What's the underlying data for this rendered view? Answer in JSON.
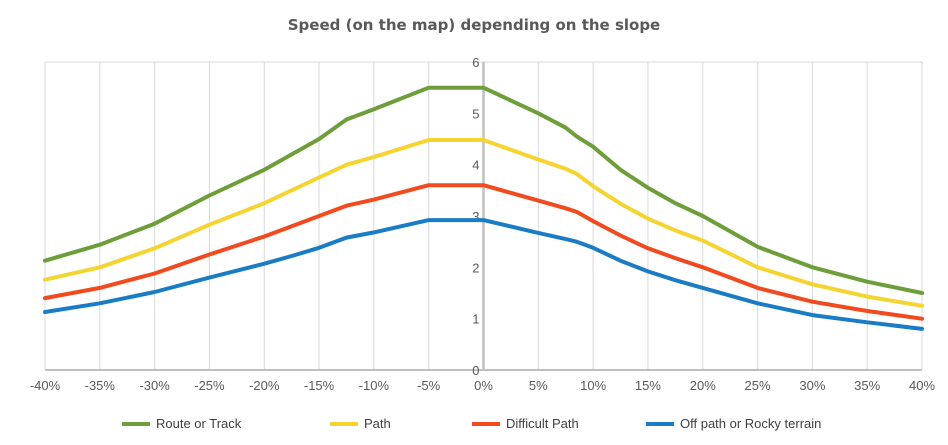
{
  "chart_data": {
    "type": "line",
    "title": "Speed (on the map) depending on the slope",
    "xlabel": "",
    "ylabel": "",
    "x_tick_labels": [
      "-40%",
      "-35%",
      "-30%",
      "-25%",
      "-20%",
      "-15%",
      "-10%",
      "-5%",
      "0%",
      "5%",
      "10%",
      "15%",
      "20%",
      "25%",
      "30%",
      "35%",
      "40%"
    ],
    "y_tick_labels": [
      "0",
      "1",
      "2",
      "3",
      "4",
      "5",
      "6"
    ],
    "xlim": [
      -40,
      40
    ],
    "ylim": [
      0,
      6
    ],
    "grid": "vertical",
    "legend": "bottom",
    "x": [
      -40,
      -35,
      -30,
      -25,
      -20,
      -17.5,
      -15,
      -12.5,
      -10,
      -5,
      0,
      5,
      7.5,
      8.5,
      10,
      12.5,
      15,
      17.5,
      20,
      25,
      30,
      35,
      40
    ],
    "series": [
      {
        "name": "Route or Track",
        "color": "#6e9e3a",
        "values": [
          2.13,
          2.44,
          2.85,
          3.4,
          3.9,
          4.2,
          4.5,
          4.88,
          5.08,
          5.5,
          5.5,
          5.0,
          4.72,
          4.55,
          4.35,
          3.9,
          3.55,
          3.25,
          3.0,
          2.4,
          2.0,
          1.72,
          1.5
        ]
      },
      {
        "name": "Path",
        "color": "#f5d432",
        "values": [
          1.76,
          2.0,
          2.37,
          2.83,
          3.25,
          3.5,
          3.75,
          4.0,
          4.15,
          4.48,
          4.48,
          4.1,
          3.92,
          3.82,
          3.58,
          3.24,
          2.95,
          2.72,
          2.52,
          2.0,
          1.67,
          1.43,
          1.25
        ]
      },
      {
        "name": "Difficult Path",
        "color": "#f04a1e",
        "values": [
          1.4,
          1.6,
          1.88,
          2.25,
          2.6,
          2.8,
          3.0,
          3.2,
          3.32,
          3.6,
          3.6,
          3.3,
          3.15,
          3.08,
          2.9,
          2.62,
          2.37,
          2.18,
          2.0,
          1.6,
          1.33,
          1.15,
          1.0
        ]
      },
      {
        "name": "Off path or Rocky terrain",
        "color": "#1a7cc4",
        "values": [
          1.13,
          1.3,
          1.52,
          1.8,
          2.07,
          2.22,
          2.38,
          2.58,
          2.68,
          2.92,
          2.92,
          2.67,
          2.55,
          2.5,
          2.38,
          2.13,
          1.92,
          1.75,
          1.6,
          1.3,
          1.07,
          0.93,
          0.8
        ]
      }
    ]
  }
}
